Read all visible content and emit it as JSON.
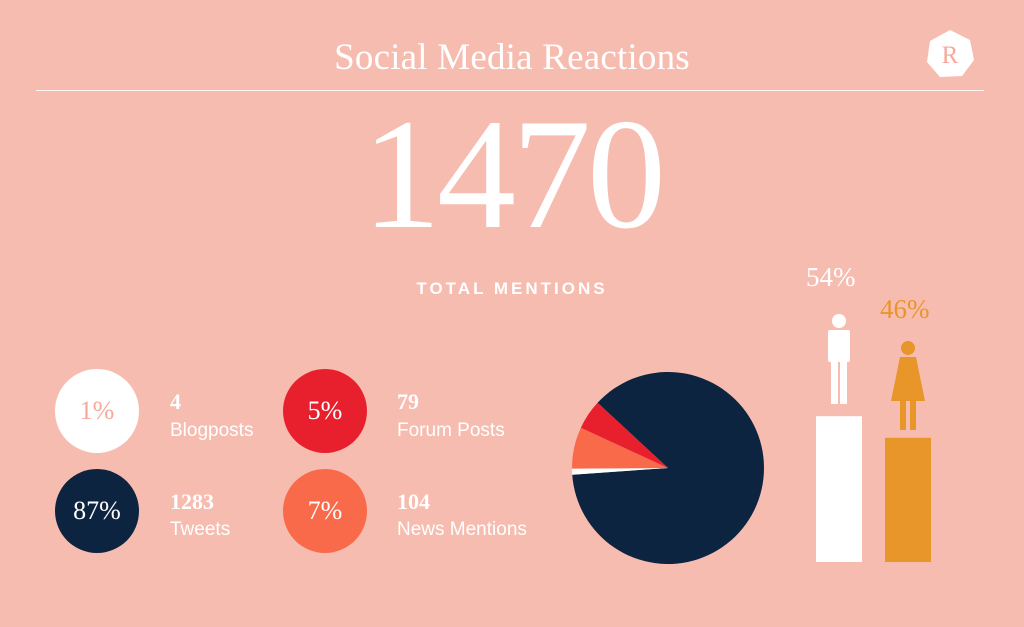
{
  "title": "Social Media Reactions",
  "logo_letter": "R",
  "total": {
    "value": "1470",
    "label": "TOTAL MENTIONS"
  },
  "stats": [
    {
      "pct": "1%",
      "count": "4",
      "name": "Blogposts",
      "circle_color": "#ffffff",
      "pct_color": "#f7a89a"
    },
    {
      "pct": "5%",
      "count": "79",
      "name": "Forum Posts",
      "circle_color": "#e8202e",
      "pct_color": "#ffffff"
    },
    {
      "pct": "87%",
      "count": "1283",
      "name": "Tweets",
      "circle_color": "#0d2440",
      "pct_color": "#ffffff"
    },
    {
      "pct": "7%",
      "count": "104",
      "name": "News Mentions",
      "circle_color": "#f96a4a",
      "pct_color": "#ffffff"
    }
  ],
  "gender": {
    "male_pct": "54%",
    "female_pct": "46%",
    "male_color": "#ffffff",
    "female_color": "#e8952a"
  },
  "colors": {
    "background": "#f7bcb0",
    "tweets": "#0d2440",
    "forum": "#e8202e",
    "news": "#f96a4a",
    "blog": "#ffffff"
  },
  "chart_data": [
    {
      "type": "pie",
      "title": "",
      "categories": [
        "Tweets",
        "Blogposts",
        "Forum Posts",
        "News Mentions"
      ],
      "values": [
        87,
        1,
        5,
        7
      ],
      "counts": [
        1283,
        4,
        79,
        104
      ],
      "colors": [
        "#0d2440",
        "#ffffff",
        "#e8202e",
        "#f96a4a"
      ]
    },
    {
      "type": "bar",
      "title": "",
      "categories": [
        "Male",
        "Female"
      ],
      "values": [
        54,
        46
      ],
      "colors": [
        "#ffffff",
        "#e8952a"
      ],
      "ylim": [
        0,
        100
      ]
    }
  ]
}
